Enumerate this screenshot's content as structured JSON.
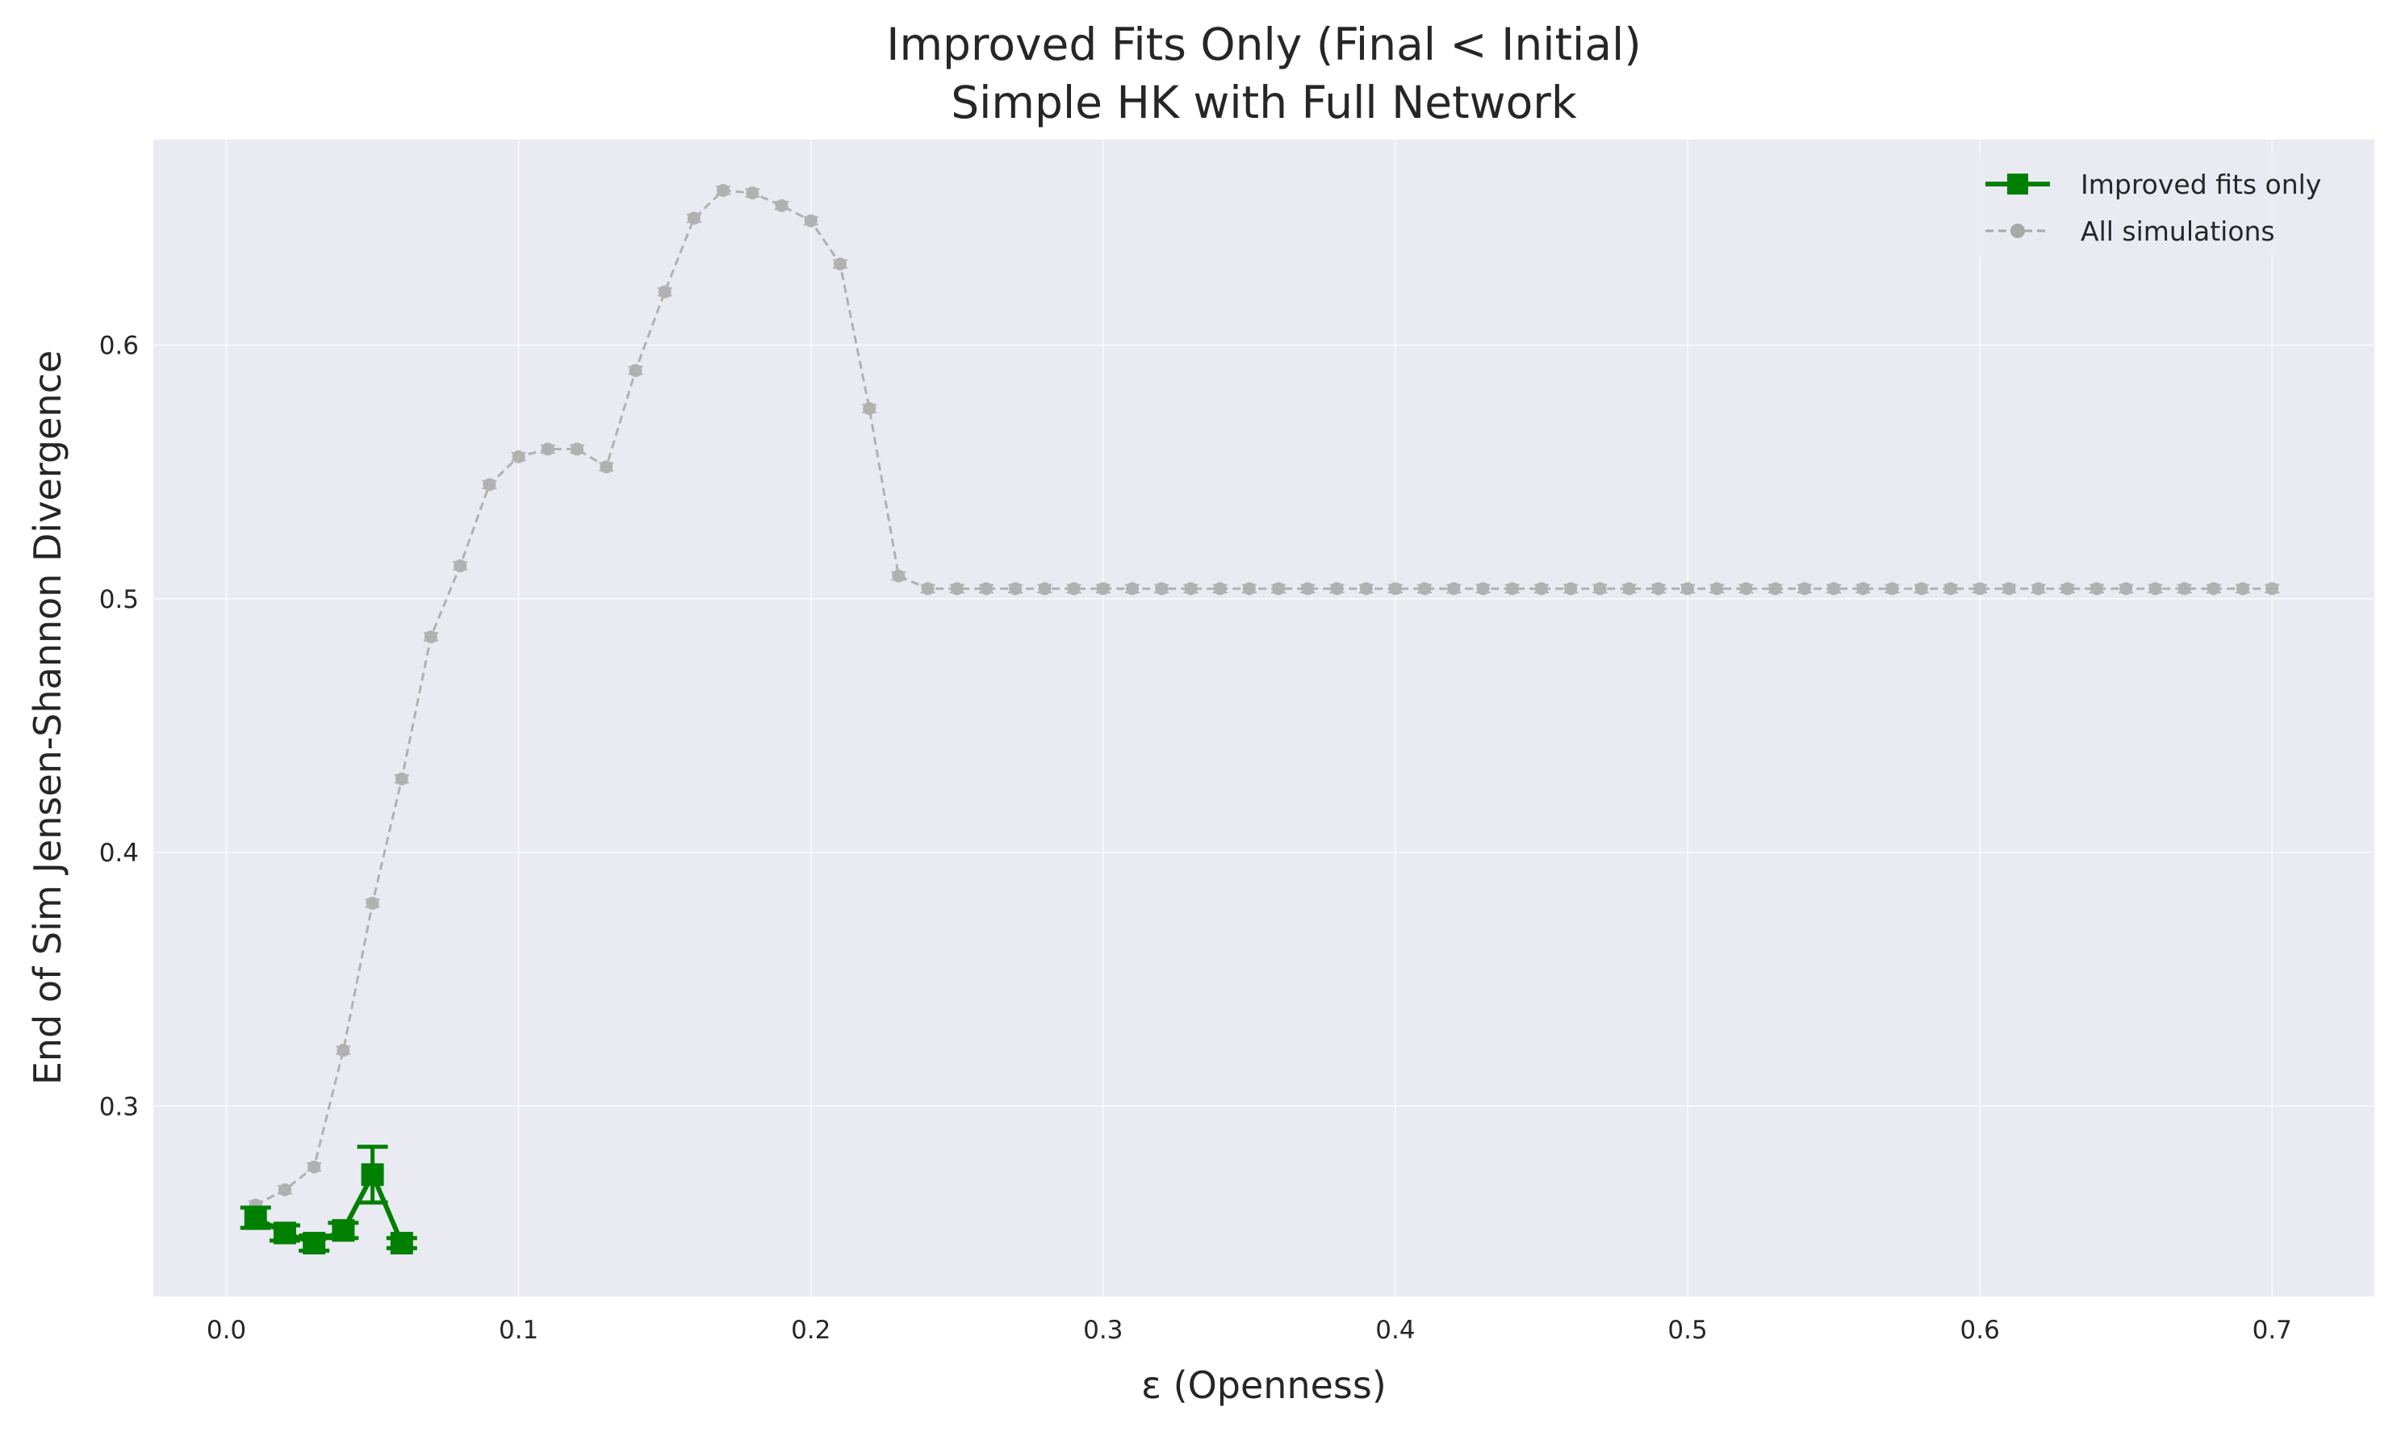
{
  "chart_data": {
    "type": "line",
    "title": "Improved Fits Only (Final < Initial)",
    "subtitle": "Simple HK with Full Network",
    "xlabel": "ε (Openness)",
    "ylabel": "End of Sim Jensen-Shannon Divergence",
    "xlim": [
      -0.025,
      0.735
    ],
    "ylim": [
      0.225,
      0.681
    ],
    "xticks": [
      0.0,
      0.1,
      0.2,
      0.3,
      0.4,
      0.5,
      0.6,
      0.7
    ],
    "xtick_labels": [
      "0.0",
      "0.1",
      "0.2",
      "0.3",
      "0.4",
      "0.5",
      "0.6",
      "0.7"
    ],
    "yticks": [
      0.3,
      0.4,
      0.5,
      0.6
    ],
    "ytick_labels": [
      "0.3",
      "0.4",
      "0.5",
      "0.6"
    ],
    "grid": true,
    "legend_position": "top-right",
    "colors": {
      "background": "#eaeaf2",
      "grid": "#ffffff",
      "improved": "#008000",
      "all": "#a8a8a8"
    },
    "series": [
      {
        "name": "Improved fits only",
        "style": "solid-square-marker",
        "x": [
          0.01,
          0.02,
          0.03,
          0.04,
          0.05,
          0.06
        ],
        "y": [
          0.256,
          0.25,
          0.246,
          0.251,
          0.273,
          0.246
        ],
        "yerr": [
          0.004,
          0.003,
          0.003,
          0.003,
          0.011,
          0.002
        ]
      },
      {
        "name": "All simulations",
        "style": "dashed-circle-marker",
        "x": [
          0.01,
          0.02,
          0.03,
          0.04,
          0.05,
          0.06,
          0.07,
          0.08,
          0.09,
          0.1,
          0.11,
          0.12,
          0.13,
          0.14,
          0.15,
          0.16,
          0.17,
          0.18,
          0.19,
          0.2,
          0.21,
          0.22,
          0.23,
          0.24,
          0.25,
          0.26,
          0.27,
          0.28,
          0.29,
          0.3,
          0.31,
          0.32,
          0.33,
          0.34,
          0.35,
          0.36,
          0.37,
          0.38,
          0.39,
          0.4,
          0.41,
          0.42,
          0.43,
          0.44,
          0.45,
          0.46,
          0.47,
          0.48,
          0.49,
          0.5,
          0.51,
          0.52,
          0.53,
          0.54,
          0.55,
          0.56,
          0.57,
          0.58,
          0.59,
          0.6,
          0.61,
          0.62,
          0.63,
          0.64,
          0.65,
          0.66,
          0.67,
          0.68,
          0.69,
          0.7
        ],
        "y": [
          0.261,
          0.267,
          0.276,
          0.322,
          0.38,
          0.429,
          0.485,
          0.513,
          0.545,
          0.556,
          0.559,
          0.559,
          0.552,
          0.59,
          0.621,
          0.65,
          0.661,
          0.66,
          0.655,
          0.649,
          0.632,
          0.575,
          0.509,
          0.504,
          0.504,
          0.504,
          0.504,
          0.504,
          0.504,
          0.504,
          0.504,
          0.504,
          0.504,
          0.504,
          0.504,
          0.504,
          0.504,
          0.504,
          0.504,
          0.504,
          0.504,
          0.504,
          0.504,
          0.504,
          0.504,
          0.504,
          0.504,
          0.504,
          0.504,
          0.504,
          0.504,
          0.504,
          0.504,
          0.504,
          0.504,
          0.504,
          0.504,
          0.504,
          0.504,
          0.504,
          0.504,
          0.504,
          0.504,
          0.504,
          0.504,
          0.504,
          0.504,
          0.504,
          0.504,
          0.504
        ],
        "yerr": 0.0015
      }
    ]
  }
}
